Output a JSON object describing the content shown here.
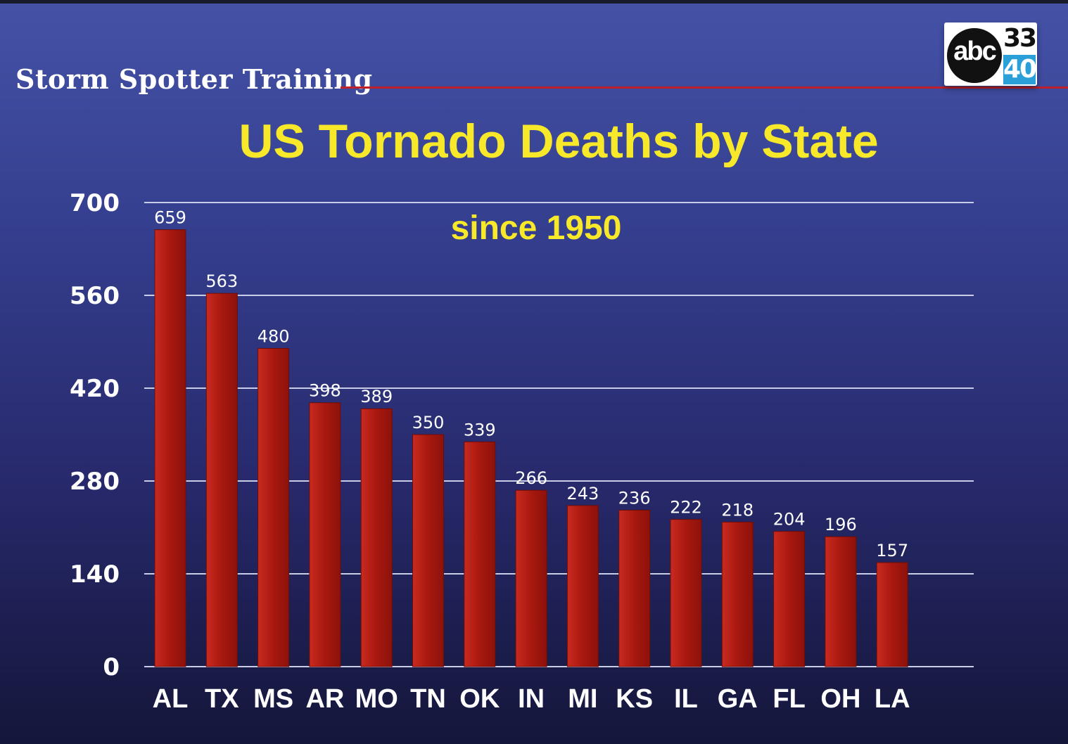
{
  "header": {
    "title": "Storm Spotter Training"
  },
  "logo": {
    "brand": "abc",
    "channel_top": "33",
    "channel_bottom": "40",
    "accent_color": "#2a9fd8"
  },
  "chart_data": {
    "type": "bar",
    "title": "US Tornado Deaths by State",
    "subtitle": "since 1950",
    "xlabel": "",
    "ylabel": "",
    "categories": [
      "AL",
      "TX",
      "MS",
      "AR",
      "MO",
      "TN",
      "OK",
      "IN",
      "MI",
      "KS",
      "IL",
      "GA",
      "FL",
      "OH",
      "LA"
    ],
    "values": [
      659,
      563,
      480,
      398,
      389,
      350,
      339,
      266,
      243,
      236,
      222,
      218,
      204,
      196,
      157
    ],
    "ylim": [
      0,
      700
    ],
    "yticks": [
      0,
      140,
      280,
      420,
      560,
      700
    ],
    "grid": true,
    "bar_color": "#b01d16",
    "title_color": "#f7e92a"
  }
}
